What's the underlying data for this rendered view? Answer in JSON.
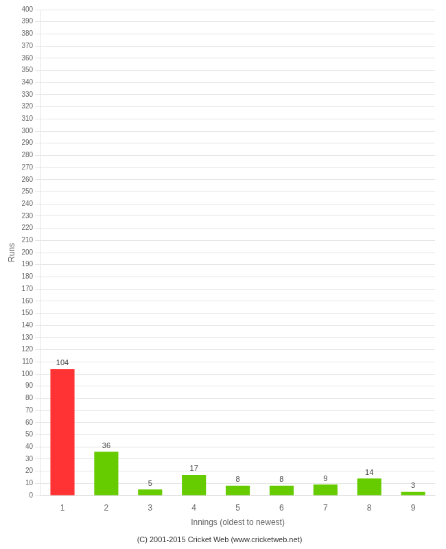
{
  "chart_data": {
    "type": "bar",
    "xlabel": "Innings (oldest to newest)",
    "ylabel": "Runs",
    "footer": "(C) 2001-2015 Cricket Web (www.cricketweb.net)",
    "categories": [
      "1",
      "2",
      "3",
      "4",
      "5",
      "6",
      "7",
      "8",
      "9"
    ],
    "values": [
      104,
      36,
      5,
      17,
      8,
      8,
      9,
      14,
      3
    ],
    "colors": [
      "#ff3333",
      "#66cc00",
      "#66cc00",
      "#66cc00",
      "#66cc00",
      "#66cc00",
      "#66cc00",
      "#66cc00",
      "#66cc00"
    ],
    "ylim": [
      0,
      400
    ],
    "yticks": [
      0,
      10,
      20,
      30,
      40,
      50,
      60,
      70,
      80,
      90,
      100,
      110,
      120,
      130,
      140,
      150,
      160,
      170,
      180,
      190,
      200,
      210,
      220,
      230,
      240,
      250,
      260,
      270,
      280,
      290,
      300,
      310,
      320,
      330,
      340,
      350,
      360,
      370,
      380,
      390,
      400
    ],
    "grid": true,
    "data_labels": true
  }
}
